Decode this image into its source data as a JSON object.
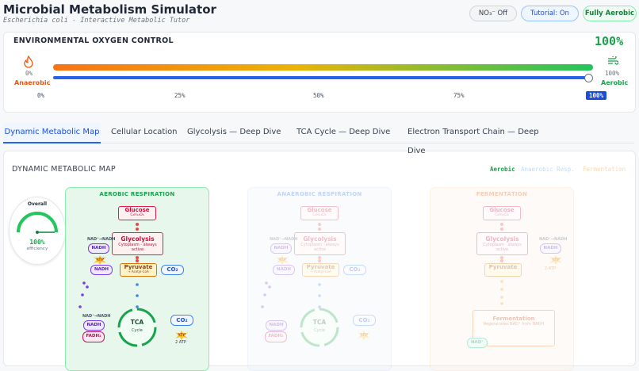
{
  "header": {
    "title": "Microbial Metabolism Simulator",
    "subtitle": "Escherichia coli - Interactive Metabolic Tutor",
    "buttons": [
      "NO₃⁻ Off",
      "Tutorial: On",
      "Fully Aerobic"
    ]
  },
  "oxygen": {
    "title": "ENVIRONMENTAL OXYGEN CONTROL",
    "value": "100%",
    "left_value": "0%",
    "left_label": "Anaerobic",
    "right_value": "100%",
    "right_label": "Aerobic",
    "ticks": [
      "0%",
      "25%",
      "50%",
      "75%",
      "100%"
    ]
  },
  "tabs": [
    "Dynamic Metabolic Map",
    "Cellular Location",
    "Glycolysis — Deep Dive",
    "TCA Cycle — Deep Dive",
    "Electron Transport Chain — Deep Dive"
  ],
  "map": {
    "title": "DYNAMIC METABOLIC MAP",
    "legend": [
      "Aerobic",
      "Anaerobic Resp.",
      "Fermentation"
    ],
    "gauge": {
      "title": "Overall",
      "value": "100%",
      "label": "efficiency"
    },
    "aerobic": {
      "title": "AEROBIC RESPIRATION",
      "glucose": "Glucose",
      "glucose_formula": "C₆H₁₂O₆",
      "glycolysis": "Glycolysis",
      "glycolysis_note": "Cytoplasm · always active",
      "nad_1": "NAD⁺→NADH",
      "nadh_1": "NADH",
      "atp_1": "ATP",
      "nadh_2": "NADH",
      "pyruvate": "Pyruvate",
      "pyruvate_note": "→ Acetyl-CoA",
      "co2_1": "CO₂",
      "nad_2": "NAD⁺→NADH",
      "nadh_3": "NADH",
      "fadh2": "FADH₂",
      "tca": "TCA",
      "tca_note": "Cycle",
      "co2_2": "CO₂",
      "atp_2": "ATP",
      "atp_yield": "2 ATP"
    },
    "anaerobic": {
      "title": "ANAEROBIC RESPIRATION",
      "glucose": "Glucose",
      "glucose_formula": "C₆H₁₂O₆",
      "glycolysis": "Glycolysis",
      "glycolysis_note": "Cytoplasm · always active",
      "nad_1": "NAD⁺→NADH",
      "nadh_1": "NADH",
      "atp_1": "ATP",
      "nadh_2": "NADH",
      "pyruvate": "Pyruvate",
      "pyruvate_note": "→ Acetyl-CoA",
      "co2_1": "CO₂",
      "nadh_3": "NADH",
      "fadh2": "FADH₂",
      "tca": "TCA",
      "tca_note": "Cycle",
      "co2_2": "CO₂",
      "atp_2": "ATP"
    },
    "fermentation": {
      "title": "FERMENTATION",
      "glucose": "Glucose",
      "glucose_formula": "C₆H₁₂O₆",
      "glycolysis": "Glycolysis",
      "glycolysis_note": "Cytoplasm · always active",
      "nad_1": "NAD⁺→NADH",
      "nadh_1": "NADH",
      "atp_1": "ATP",
      "atp_yield": "2 ATP",
      "pyruvate": "Pyruvate",
      "fermentation": "Fermentation",
      "fermentation_note": "Regenerates NAD⁺ from NADH",
      "nad_3": "NAD⁺"
    }
  }
}
